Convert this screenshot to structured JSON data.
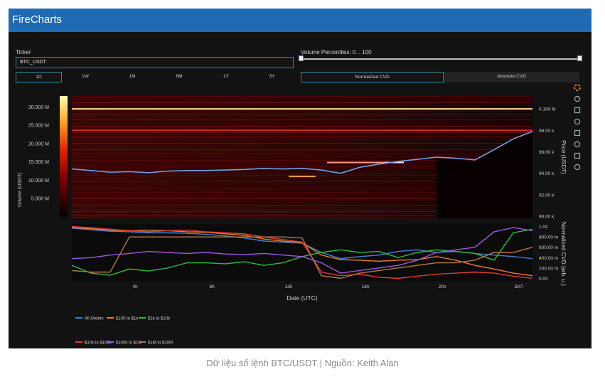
{
  "app": {
    "title": "FireCharts"
  },
  "controls": {
    "ticker_label": "Ticker",
    "ticker_value": "BTC_USDT",
    "percentile_label": "Volume Percentiles: 0 .. 100",
    "timeframes": [
      "1D",
      "1W",
      "1M",
      "6M",
      "1Y",
      "3Y"
    ],
    "active_timeframe": "1D",
    "cvd_modes": [
      "Normalized CVD",
      "Absolute CVD"
    ],
    "active_cvd_mode": "Normalized CVD"
  },
  "toolbar_icons": [
    "plotly-logo-icon",
    "pan-icon",
    "zoom-icon",
    "box-zoom-icon",
    "reset-icon",
    "save-icon",
    "autoscale-icon",
    "crosshair-icon"
  ],
  "colors": {
    "title_bar": "#1f6ab3",
    "accent": "#2a8aa5",
    "price_line": "#6fa0e8",
    "all_orders": "#3f84d6",
    "100_to_1k": "#f07b2c",
    "1k_to_10k": "#2dbd3a",
    "10k_to_100k": "#e23a2f",
    "100k_to_1m": "#9d59e0",
    "1m_to_10m": "#b97546"
  },
  "chart_data": [
    {
      "type": "heatmap",
      "title": "",
      "colorbar_label": "Volume (USDT)",
      "colorbar_ticks": [
        "30.000 M",
        "25.000 M",
        "20.000 M",
        "15.000 M",
        "10.000 M",
        "5.000 M"
      ],
      "colorbar_tick_values": [
        30,
        25,
        20,
        15,
        10,
        5
      ],
      "colorbar_range": [
        0,
        33
      ],
      "ylabel": "Price (USDT)",
      "y_ticks": [
        "0.100 M",
        "98.00 k",
        "96.00 k",
        "94.00 k",
        "92.00 k",
        "90.00 k"
      ],
      "y_tick_values": [
        100000,
        98000,
        96000,
        94000,
        92000,
        90000
      ],
      "ylim": [
        89800,
        101200
      ],
      "x_hours": [
        0,
        1,
        2,
        3,
        4,
        5,
        6,
        7,
        8,
        9,
        10,
        11,
        12,
        13,
        14,
        15,
        16,
        17,
        18,
        19,
        20,
        21,
        22,
        23,
        24
      ],
      "price": [
        94400,
        94250,
        94100,
        94150,
        94050,
        94200,
        94250,
        94250,
        94300,
        94350,
        94450,
        94400,
        94450,
        94300,
        94000,
        94550,
        94850,
        95100,
        95300,
        95500,
        95400,
        95250,
        96200,
        97200,
        97900
      ],
      "levels": [
        {
          "price": 100000,
          "from_hour": 0,
          "to_hour": 24,
          "color": "#ffe28a"
        },
        {
          "price": 98000,
          "from_hour": 0,
          "to_hour": 24,
          "color": "#c9362a"
        },
        {
          "price": 93700,
          "from_hour": 11.3,
          "to_hour": 12.7,
          "color": "#f39c3c"
        },
        {
          "price": 95000,
          "from_hour": 13.3,
          "to_hour": 16.3,
          "color": "#ff9c8a"
        },
        {
          "price": 95000,
          "from_hour": 16.3,
          "to_hour": 17.3,
          "color": "#d8e8ff"
        }
      ]
    },
    {
      "type": "line",
      "title": "",
      "xlabel": "Date (UTC)",
      "x_ticks": [
        "4h",
        "8h",
        "12h",
        "16h",
        "20h",
        "5/07"
      ],
      "x_tick_values": [
        3.3,
        7.3,
        11.3,
        15.3,
        19.3,
        23.3
      ],
      "xlim": [
        0,
        24
      ],
      "ylabel": "Normalized CVD (arb. u.)",
      "y_ticks": [
        "1.00",
        "800.00 m",
        "600.00 m",
        "400.00 m",
        "200.00 m",
        "0.00"
      ],
      "y_tick_values": [
        1.0,
        0.8,
        0.6,
        0.4,
        0.2,
        0.0
      ],
      "ylim": [
        -0.05,
        1.05
      ],
      "x": [
        0,
        1,
        2,
        3,
        4,
        5,
        6,
        7,
        8,
        9,
        10,
        11,
        12,
        13,
        14,
        15,
        16,
        17,
        18,
        19,
        20,
        21,
        22,
        23,
        24
      ],
      "series": [
        {
          "name": "All Orders",
          "color": "#3f84d6",
          "values": [
            0.97,
            0.94,
            0.91,
            0.9,
            0.88,
            0.88,
            0.87,
            0.85,
            0.82,
            0.78,
            0.72,
            0.7,
            0.68,
            0.5,
            0.38,
            0.42,
            0.45,
            0.52,
            0.55,
            0.5,
            0.52,
            0.48,
            0.45,
            0.42,
            0.38
          ]
        },
        {
          "name": "$100 to $1k",
          "color": "#f07b2c",
          "values": [
            0.98,
            0.96,
            0.93,
            0.92,
            0.93,
            0.92,
            0.9,
            0.89,
            0.86,
            0.83,
            0.76,
            0.72,
            0.69,
            0.45,
            0.36,
            0.35,
            0.33,
            0.35,
            0.36,
            0.42,
            0.35,
            0.25,
            0.18,
            0.1,
            0.05
          ]
        },
        {
          "name": "$1k to $10k",
          "color": "#2dbd3a",
          "values": [
            0.25,
            0.1,
            0.06,
            0.18,
            0.14,
            0.2,
            0.3,
            0.3,
            0.28,
            0.32,
            0.25,
            0.3,
            0.42,
            0.5,
            0.55,
            0.5,
            0.52,
            0.4,
            0.5,
            0.55,
            0.52,
            0.48,
            0.35,
            0.88,
            0.95
          ]
        },
        {
          "name": "$10k to $100k",
          "color": "#e23a2f",
          "values": [
            1.0,
            0.98,
            0.95,
            0.92,
            0.9,
            0.92,
            0.93,
            0.9,
            0.88,
            0.86,
            0.8,
            0.75,
            0.7,
            0.12,
            0.05,
            0.08,
            0.02,
            0.0,
            0.04,
            0.08,
            0.1,
            0.12,
            0.1,
            0.04,
            0.0
          ]
        },
        {
          "name": "$100k to $1M",
          "color": "#9d59e0",
          "values": [
            0.38,
            0.4,
            0.45,
            0.48,
            0.52,
            0.5,
            0.48,
            0.5,
            0.47,
            0.46,
            0.48,
            0.45,
            0.42,
            0.3,
            0.1,
            0.15,
            0.2,
            0.25,
            0.35,
            0.5,
            0.55,
            0.6,
            0.9,
            0.98,
            0.92
          ]
        },
        {
          "name": "$1M to $10M",
          "color": "#b97546",
          "values": [
            0.15,
            0.12,
            0.12,
            0.8,
            0.8,
            0.8,
            0.8,
            0.8,
            0.8,
            0.8,
            0.8,
            0.8,
            0.78,
            0.05,
            0.0,
            0.1,
            0.15,
            0.2,
            0.25,
            0.3,
            0.3,
            0.35,
            0.5,
            0.5,
            0.6
          ]
        }
      ],
      "legend_placement": "bottom"
    }
  ],
  "caption": "Dữ liệu sổ lệnh BTC/USDT | Nguồn: Keith Alan"
}
